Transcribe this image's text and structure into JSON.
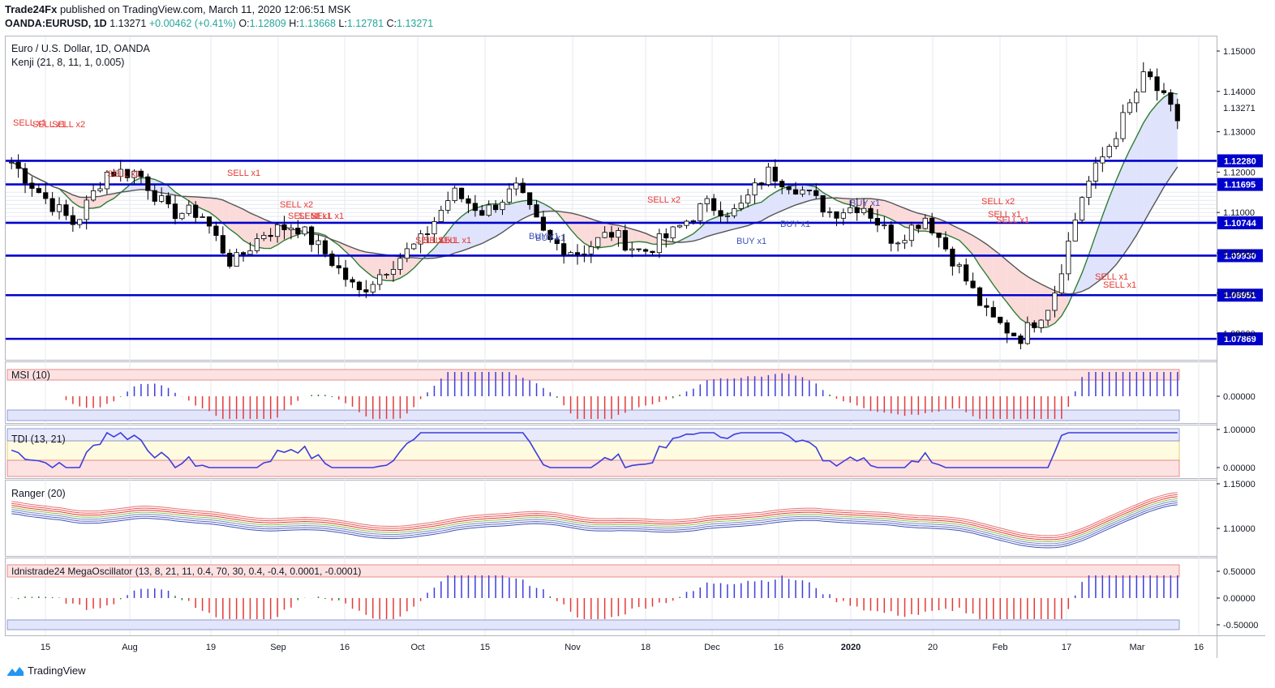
{
  "header": {
    "publisher": "Trade24Fx",
    "published_text": "published on TradingView.com, March 11, 2020 12:06:51 MSK",
    "symbol": "OANDA:EURUSD, 1D",
    "last": "1.13271",
    "change": "+0.00462 (+0.41%)",
    "o_label": "O:",
    "o": "1.12809",
    "h_label": "H:",
    "h": "1.13668",
    "l_label": "L:",
    "l": "1.12781",
    "c_label": "C:",
    "c": "1.13271"
  },
  "main_pane": {
    "title": "Euro / U.S. Dollar, 1D, OANDA",
    "indicator": "Kenji (21, 8, 11, 1, 0.005)",
    "price_ticks": [
      "1.15000",
      "1.14000",
      "1.13000",
      "1.12000",
      "1.11000",
      "1.10000",
      "1.09000",
      "1.08000"
    ],
    "current_price": "1.13271",
    "levels": [
      "1.12280",
      "1.11695",
      "1.10744",
      "1.09930",
      "1.08951",
      "1.07869"
    ],
    "signals": [
      "SELL x1",
      "SELL x1",
      "SELL x2",
      "SELL x1",
      "SELL x1",
      "SELL x2",
      "SELL x1",
      "SELL x1",
      "SELL x1",
      "SELL x1",
      "SELL x1",
      "SELL x1",
      "BUY x1",
      "BUY x1",
      "SELL x2",
      "BUY x1",
      "BUY x1",
      "BUY x1",
      "SELL x2",
      "SELL x1",
      "SELL x1",
      "SELL x1",
      "SELL x1"
    ]
  },
  "msi_pane": {
    "title": "MSI (10)",
    "ticks": [
      "0.00000"
    ]
  },
  "tdi_pane": {
    "title": "TDI (13, 21)",
    "ticks": [
      "1.00000",
      "0.00000"
    ]
  },
  "ranger_pane": {
    "title": "Ranger (20)",
    "ticks": [
      "1.15000",
      "1.10000"
    ]
  },
  "mega_pane": {
    "title": "Idnistrade24 MegaOscillator (13, 8, 21, 11, 0.4, 70, 30, 0.4, -0.4, 0.0001, -0.0001)",
    "ticks": [
      "0.50000",
      "0.00000",
      "-0.50000"
    ]
  },
  "x_axis": [
    "15",
    "Aug",
    "19",
    "Sep",
    "16",
    "Oct",
    "15",
    "Nov",
    "18",
    "Dec",
    "16",
    "2020",
    "20",
    "Feb",
    "17",
    "Mar",
    "16"
  ],
  "brand": "TradingView",
  "colors": {
    "up": "#26a69a",
    "level": "#0000cc",
    "sell": "#e53935",
    "buy": "#3f51b5",
    "grid": "#e6e9ef"
  },
  "chart_data": {
    "type": "candlestick",
    "title": "Euro / U.S. Dollar, 1D, OANDA",
    "ylim": [
      1.076,
      1.152
    ],
    "horizontal_levels": [
      1.1228,
      1.11695,
      1.10744,
      1.0993,
      1.08951,
      1.07869
    ],
    "close_trend": [
      [
        "Jul 15",
        1.1225
      ],
      [
        "Jul 25",
        1.114
      ],
      [
        "Aug 1",
        1.107
      ],
      [
        "Aug 5",
        1.12
      ],
      [
        "Aug 12",
        1.12
      ],
      [
        "Aug 19",
        1.11
      ],
      [
        "Aug 26",
        1.11
      ],
      [
        "Sep 2",
        1.097
      ],
      [
        "Sep 10",
        1.105
      ],
      [
        "Sep 16",
        1.107
      ],
      [
        "Sep 23",
        1.0995
      ],
      [
        "Oct 1",
        1.09
      ],
      [
        "Oct 7",
        1.097
      ],
      [
        "Oct 15",
        1.103
      ],
      [
        "Oct 18",
        1.115
      ],
      [
        "Oct 25",
        1.11
      ],
      [
        "Nov 1",
        1.116
      ],
      [
        "Nov 8",
        1.103
      ],
      [
        "Nov 15",
        1.1
      ],
      [
        "Nov 22",
        1.105
      ],
      [
        "Nov 29",
        1.1
      ],
      [
        "Dec 6",
        1.105
      ],
      [
        "Dec 13",
        1.112
      ],
      [
        "Dec 20",
        1.11
      ],
      [
        "Dec 27",
        1.12
      ],
      [
        "Jan 3",
        1.116
      ],
      [
        "Jan 10",
        1.11
      ],
      [
        "Jan 17",
        1.112
      ],
      [
        "Jan 24",
        1.103
      ],
      [
        "Jan 31",
        1.109
      ],
      [
        "Feb 7",
        1.097
      ],
      [
        "Feb 14",
        1.084
      ],
      [
        "Feb 20",
        1.079
      ],
      [
        "Feb 26",
        1.088
      ],
      [
        "Mar 3",
        1.115
      ],
      [
        "Mar 6",
        1.129
      ],
      [
        "Mar 9",
        1.1445
      ],
      [
        "Mar 10",
        1.1327
      ]
    ]
  }
}
